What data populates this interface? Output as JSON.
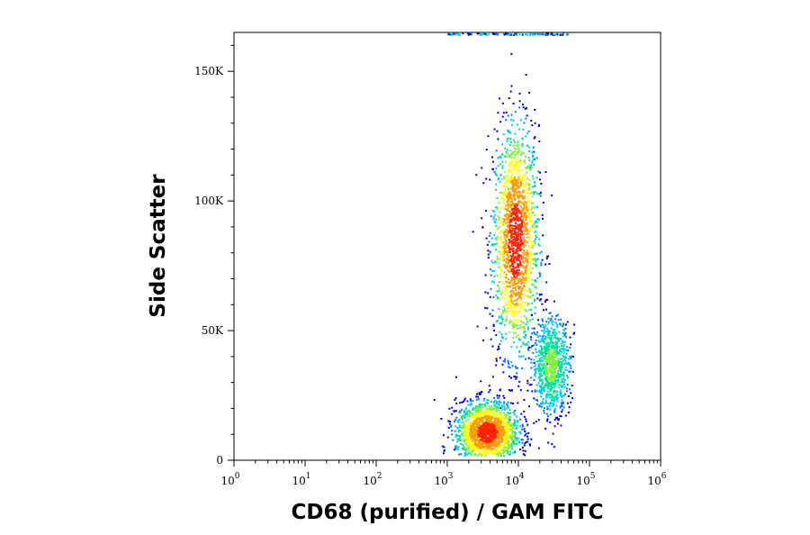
{
  "chart_data": {
    "type": "scatter",
    "title": "",
    "xlabel": "CD68 (purified) / GAM FITC",
    "ylabel": "Side Scatter",
    "x_scale": "log",
    "xlim": [
      1,
      1000000
    ],
    "ylim": [
      0,
      165000
    ],
    "x_ticks": [
      {
        "value": 1,
        "base": "10",
        "exp": "0"
      },
      {
        "value": 10,
        "base": "10",
        "exp": "1"
      },
      {
        "value": 100,
        "base": "10",
        "exp": "2"
      },
      {
        "value": 1000,
        "base": "10",
        "exp": "3"
      },
      {
        "value": 10000,
        "base": "10",
        "exp": "4"
      },
      {
        "value": 100000,
        "base": "10",
        "exp": "5"
      },
      {
        "value": 1000000,
        "base": "10",
        "exp": "6"
      }
    ],
    "y_ticks": [
      {
        "value": 0,
        "label": "0"
      },
      {
        "value": 50000,
        "label": "50K"
      },
      {
        "value": 100000,
        "label": "100K"
      },
      {
        "value": 150000,
        "label": "150K"
      }
    ],
    "grid": false,
    "colormap": [
      "#0000cc",
      "#0077ff",
      "#00c8ff",
      "#00e0a0",
      "#80f040",
      "#ffff00",
      "#ff9900",
      "#ff2200"
    ],
    "populations": [
      {
        "name_hidden": true,
        "center_log10_x": 3.95,
        "center_y": 85000,
        "spread_log10_x": 0.16,
        "spread_y": 22000,
        "tilt": 6.8e-06,
        "density": "high"
      },
      {
        "name_hidden": true,
        "center_log10_x": 3.55,
        "center_y": 11000,
        "spread_log10_x": 0.22,
        "spread_y": 6000,
        "density": "high"
      },
      {
        "name_hidden": true,
        "center_log10_x": 4.45,
        "center_y": 37000,
        "spread_log10_x": 0.13,
        "spread_y": 9000,
        "density": "medium"
      }
    ]
  }
}
